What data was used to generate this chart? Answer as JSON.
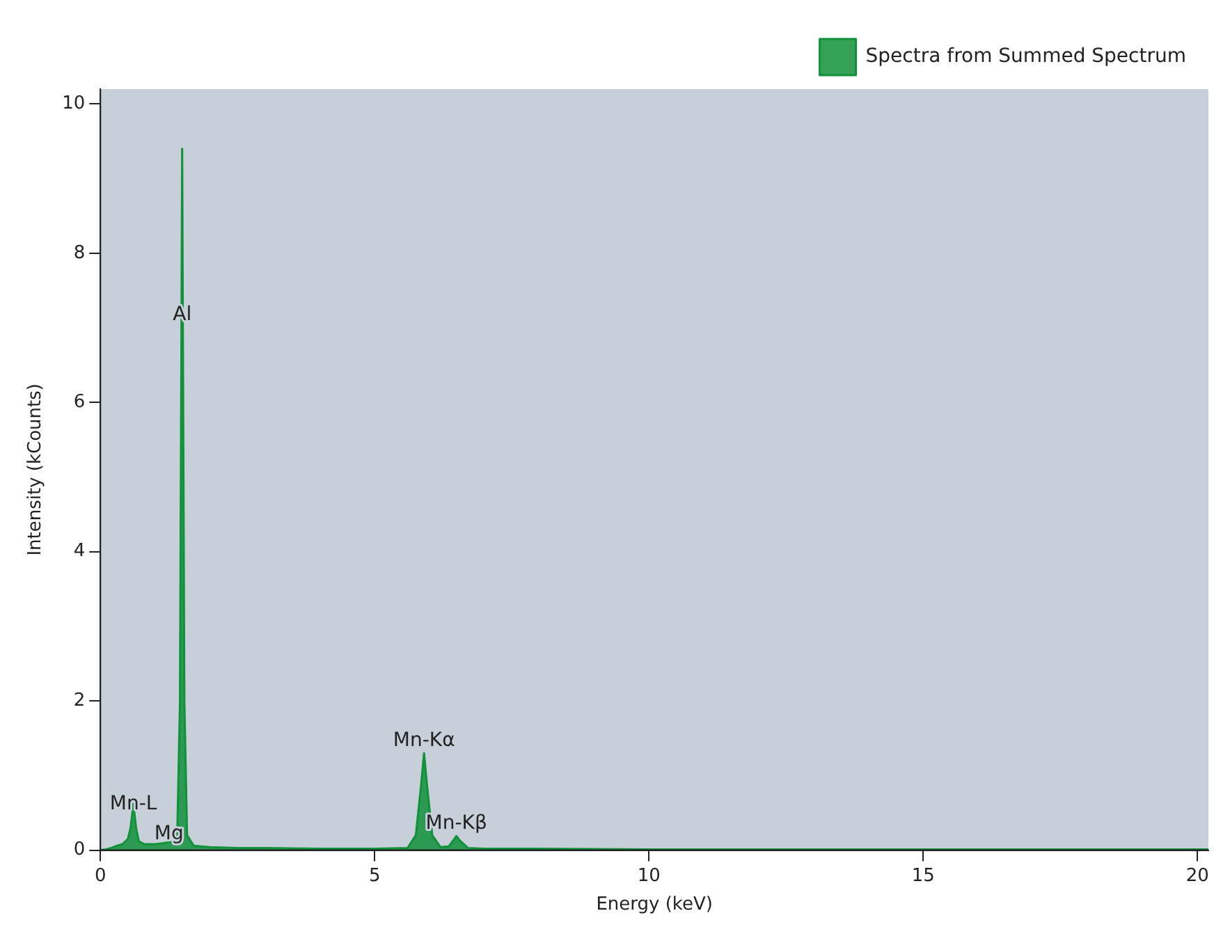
{
  "chart_data": {
    "type": "area",
    "xlabel": "Energy (keV)",
    "ylabel": "Intensity (kCounts)",
    "xlim": [
      0,
      20.2
    ],
    "xticks": [
      0,
      5,
      10,
      15,
      20
    ],
    "ylim": [
      0,
      10.2
    ],
    "yticks": [
      0,
      2,
      4,
      6,
      8,
      10
    ],
    "grid": false,
    "legend": "top right",
    "marker": "none",
    "x": [
      0,
      0.1,
      0.2,
      0.3,
      0.4,
      0.5,
      0.55,
      0.6,
      0.65,
      0.7,
      0.8,
      0.9,
      1.0,
      1.1,
      1.2,
      1.25,
      1.3,
      1.4,
      1.45,
      1.49,
      1.53,
      1.58,
      1.7,
      2.0,
      2.5,
      3,
      4,
      5,
      5.6,
      5.75,
      5.85,
      5.9,
      5.95,
      6.05,
      6.2,
      6.35,
      6.45,
      6.49,
      6.55,
      6.7,
      7,
      8,
      10,
      15,
      17.5,
      20,
      20.2
    ],
    "series": [
      {
        "name": "Spectra from Summed Spectrum",
        "color": "#10913a",
        "values": [
          0,
          0.01,
          0.03,
          0.06,
          0.08,
          0.15,
          0.3,
          0.62,
          0.3,
          0.12,
          0.08,
          0.08,
          0.08,
          0.09,
          0.1,
          0.12,
          0.1,
          0.2,
          2.0,
          9.4,
          2.0,
          0.2,
          0.06,
          0.04,
          0.03,
          0.03,
          0.02,
          0.02,
          0.03,
          0.2,
          0.9,
          1.3,
          0.9,
          0.2,
          0.04,
          0.05,
          0.15,
          0.19,
          0.13,
          0.03,
          0.02,
          0.02,
          0.01,
          0.01,
          0.01,
          0.01,
          0.01
        ]
      }
    ],
    "annotations": [
      {
        "text": "Mn-L",
        "x": 0.6,
        "y": 0.45
      },
      {
        "text": "Mg",
        "x": 1.25,
        "y": 0.05
      },
      {
        "text": "Al",
        "x": 1.49,
        "y": 7.0
      },
      {
        "text": "Mn-Kα",
        "x": 5.9,
        "y": 1.3
      },
      {
        "text": "Mn-Kβ",
        "x": 6.49,
        "y": 0.19
      }
    ]
  }
}
